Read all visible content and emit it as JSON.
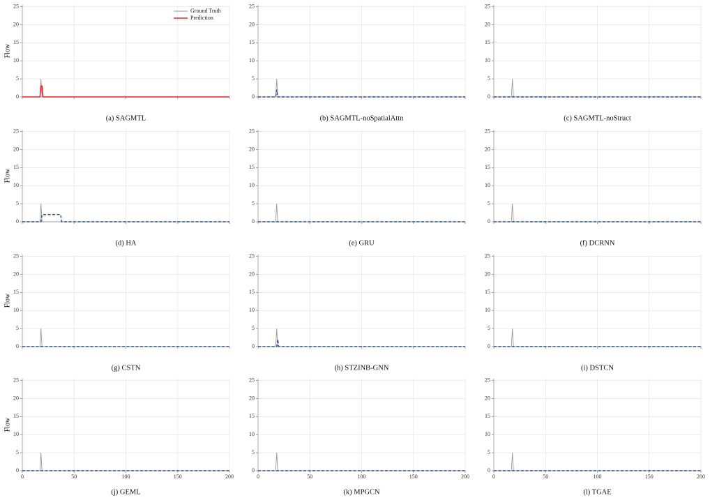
{
  "chart_data": [
    {
      "type": "line",
      "title": "(a) SAGMTL",
      "ylabel": "Flow",
      "xlim": [
        0,
        200
      ],
      "ylim": [
        0,
        25.5
      ],
      "xticks": [
        0,
        50,
        100,
        150,
        200
      ],
      "yticks": [
        0,
        5,
        10,
        15,
        20,
        25
      ],
      "grid": true,
      "legend": "upper right",
      "series": [
        {
          "name": "Ground Truth",
          "color": "#9a9a9a",
          "linestyle": "solid",
          "x": [
            0,
            17,
            18,
            19,
            200
          ],
          "values": [
            0,
            0,
            5,
            0,
            0
          ]
        },
        {
          "name": "Prediction",
          "color": "#e8262b",
          "linestyle": "solid",
          "x": [
            0,
            17,
            18,
            19,
            20,
            200
          ],
          "values": [
            0,
            0,
            3,
            3,
            0,
            0
          ]
        }
      ]
    },
    {
      "type": "line",
      "title": "(b) SAGMTL-noSpatialAttn",
      "xlim": [
        0,
        200
      ],
      "ylim": [
        0,
        25.5
      ],
      "xticks": [
        0,
        50,
        100,
        150,
        200
      ],
      "yticks": [
        0,
        5,
        10,
        15,
        20,
        25
      ],
      "grid": true,
      "series": [
        {
          "color": "#9a9a9a",
          "linestyle": "solid",
          "x": [
            0,
            17,
            18,
            19,
            200
          ],
          "values": [
            0,
            0,
            5,
            0,
            0
          ]
        },
        {
          "color": "#2a4d8f",
          "linestyle": "dashed",
          "x": [
            0,
            17,
            18,
            19,
            200
          ],
          "values": [
            0,
            0,
            2,
            0,
            0
          ]
        }
      ]
    },
    {
      "type": "line",
      "title": "(c) SAGMTL-noStruct",
      "xlim": [
        0,
        200
      ],
      "ylim": [
        0,
        25.5
      ],
      "xticks": [
        0,
        50,
        100,
        150,
        200
      ],
      "yticks": [
        0,
        5,
        10,
        15,
        20,
        25
      ],
      "grid": true,
      "series": [
        {
          "color": "#9a9a9a",
          "linestyle": "solid",
          "x": [
            0,
            17,
            18,
            19,
            200
          ],
          "values": [
            0,
            0,
            5,
            0,
            0
          ]
        },
        {
          "color": "#2a4d8f",
          "linestyle": "dashed",
          "x": [
            0,
            200
          ],
          "values": [
            0,
            0
          ]
        }
      ]
    },
    {
      "type": "line",
      "title": "(d) HA",
      "ylabel": "Flow",
      "xlim": [
        0,
        200
      ],
      "ylim": [
        0,
        25.5
      ],
      "xticks": [
        0,
        50,
        100,
        150,
        200
      ],
      "yticks": [
        0,
        5,
        10,
        15,
        20,
        25
      ],
      "grid": true,
      "series": [
        {
          "color": "#9a9a9a",
          "linestyle": "solid",
          "x": [
            0,
            17,
            18,
            19,
            200
          ],
          "values": [
            0,
            0,
            5,
            0,
            0
          ]
        },
        {
          "color": "#2a4d8f",
          "linestyle": "dashed",
          "x": [
            0,
            18,
            19,
            37,
            38,
            200
          ],
          "values": [
            0,
            0,
            2,
            2,
            0,
            0
          ]
        }
      ]
    },
    {
      "type": "line",
      "title": "(e) GRU",
      "xlim": [
        0,
        200
      ],
      "ylim": [
        0,
        25.5
      ],
      "xticks": [
        0,
        50,
        100,
        150,
        200
      ],
      "yticks": [
        0,
        5,
        10,
        15,
        20,
        25
      ],
      "grid": true,
      "series": [
        {
          "color": "#9a9a9a",
          "linestyle": "solid",
          "x": [
            0,
            17,
            18,
            19,
            200
          ],
          "values": [
            0,
            0,
            5,
            0,
            0
          ]
        },
        {
          "color": "#2a4d8f",
          "linestyle": "dashed",
          "x": [
            0,
            200
          ],
          "values": [
            0,
            0
          ]
        }
      ]
    },
    {
      "type": "line",
      "title": "(f) DCRNN",
      "xlim": [
        0,
        200
      ],
      "ylim": [
        0,
        25.5
      ],
      "xticks": [
        0,
        50,
        100,
        150,
        200
      ],
      "yticks": [
        0,
        5,
        10,
        15,
        20,
        25
      ],
      "grid": true,
      "series": [
        {
          "color": "#9a9a9a",
          "linestyle": "solid",
          "x": [
            0,
            17,
            18,
            19,
            200
          ],
          "values": [
            0,
            0,
            5,
            0,
            0
          ]
        },
        {
          "color": "#2a4d8f",
          "linestyle": "dashed",
          "x": [
            0,
            200
          ],
          "values": [
            0,
            0
          ]
        }
      ]
    },
    {
      "type": "line",
      "title": "(g) CSTN",
      "ylabel": "Flow",
      "xlim": [
        0,
        200
      ],
      "ylim": [
        0,
        25.5
      ],
      "xticks": [
        0,
        50,
        100,
        150,
        200
      ],
      "yticks": [
        0,
        5,
        10,
        15,
        20,
        25
      ],
      "grid": true,
      "series": [
        {
          "color": "#9a9a9a",
          "linestyle": "solid",
          "x": [
            0,
            17,
            18,
            19,
            200
          ],
          "values": [
            0,
            0,
            5,
            0,
            0
          ]
        },
        {
          "color": "#2a4d8f",
          "linestyle": "dashed",
          "x": [
            0,
            200
          ],
          "values": [
            0,
            0
          ]
        }
      ]
    },
    {
      "type": "line",
      "title": "(h) STZINB-GNN",
      "xlim": [
        0,
        200
      ],
      "ylim": [
        0,
        25.5
      ],
      "xticks": [
        0,
        50,
        100,
        150,
        200
      ],
      "yticks": [
        0,
        5,
        10,
        15,
        20,
        25
      ],
      "grid": true,
      "series": [
        {
          "color": "#9a9a9a",
          "linestyle": "solid",
          "x": [
            0,
            17,
            18,
            19,
            200
          ],
          "values": [
            0,
            0,
            5,
            0,
            0
          ]
        },
        {
          "color": "#2a4d8f",
          "linestyle": "dashed",
          "x": [
            0,
            18,
            19,
            20,
            200
          ],
          "values": [
            0,
            0,
            2,
            0,
            0
          ]
        }
      ]
    },
    {
      "type": "line",
      "title": "(i) DSTCN",
      "xlim": [
        0,
        200
      ],
      "ylim": [
        0,
        25.5
      ],
      "xticks": [
        0,
        50,
        100,
        150,
        200
      ],
      "yticks": [
        0,
        5,
        10,
        15,
        20,
        25
      ],
      "grid": true,
      "series": [
        {
          "color": "#9a9a9a",
          "linestyle": "solid",
          "x": [
            0,
            17,
            18,
            19,
            200
          ],
          "values": [
            0,
            0,
            5,
            0,
            0
          ]
        },
        {
          "color": "#2a4d8f",
          "linestyle": "dashed",
          "x": [
            0,
            200
          ],
          "values": [
            0,
            0
          ]
        }
      ]
    },
    {
      "type": "line",
      "title": "(j) GEML",
      "ylabel": "Flow",
      "xlim": [
        0,
        200
      ],
      "ylim": [
        0,
        25.5
      ],
      "xticks": [
        0,
        50,
        100,
        150,
        200
      ],
      "yticks": [
        0,
        5,
        10,
        15,
        20,
        25
      ],
      "grid": true,
      "series": [
        {
          "color": "#9a9a9a",
          "linestyle": "solid",
          "x": [
            0,
            17,
            18,
            19,
            200
          ],
          "values": [
            0,
            0,
            5,
            0,
            0
          ]
        },
        {
          "color": "#2a4d8f",
          "linestyle": "dashed",
          "x": [
            0,
            200
          ],
          "values": [
            0,
            0
          ]
        }
      ]
    },
    {
      "type": "line",
      "title": "(k) MPGCN",
      "xlim": [
        0,
        200
      ],
      "ylim": [
        0,
        25.5
      ],
      "xticks": [
        0,
        50,
        100,
        150,
        200
      ],
      "yticks": [
        0,
        5,
        10,
        15,
        20,
        25
      ],
      "grid": true,
      "series": [
        {
          "color": "#9a9a9a",
          "linestyle": "solid",
          "x": [
            0,
            17,
            18,
            19,
            200
          ],
          "values": [
            0,
            0,
            5,
            0,
            0
          ]
        },
        {
          "color": "#2a4d8f",
          "linestyle": "dashed",
          "x": [
            0,
            200
          ],
          "values": [
            0,
            0
          ]
        }
      ]
    },
    {
      "type": "line",
      "title": "(l) TGAE",
      "xlim": [
        0,
        200
      ],
      "ylim": [
        0,
        25.5
      ],
      "xticks": [
        0,
        50,
        100,
        150,
        200
      ],
      "yticks": [
        0,
        5,
        10,
        15,
        20,
        25
      ],
      "grid": true,
      "series": [
        {
          "color": "#9a9a9a",
          "linestyle": "solid",
          "x": [
            0,
            17,
            18,
            19,
            200
          ],
          "values": [
            0,
            0,
            5,
            0,
            0
          ]
        },
        {
          "color": "#2a4d8f",
          "linestyle": "dashed",
          "x": [
            0,
            200
          ],
          "values": [
            0,
            0
          ]
        }
      ]
    }
  ]
}
